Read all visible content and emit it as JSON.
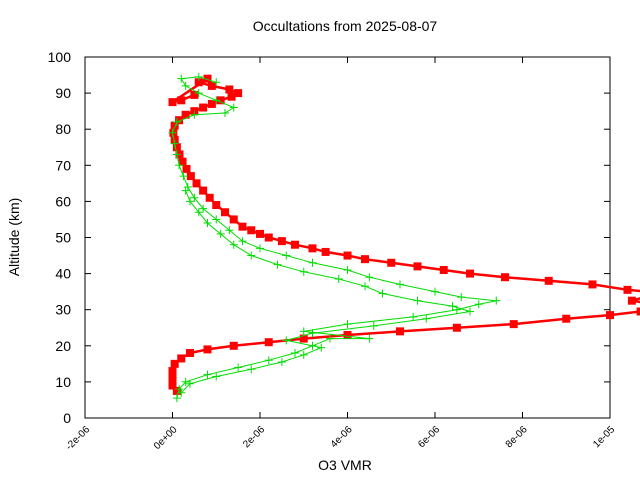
{
  "chart_data": {
    "type": "line",
    "title": "Occultations from 2025-08-07",
    "xlabel": "O3 VMR",
    "ylabel": "Altitude (km)",
    "xlim": [
      -2e-06,
      1e-05
    ],
    "ylim": [
      0,
      100
    ],
    "xticks": [
      {
        "value": -2e-06,
        "label": "-2e-06"
      },
      {
        "value": 0,
        "label": "0e+00"
      },
      {
        "value": 2e-06,
        "label": "2e-06"
      },
      {
        "value": 4e-06,
        "label": "4e-06"
      },
      {
        "value": 6e-06,
        "label": "6e-06"
      },
      {
        "value": 8e-06,
        "label": "8e-06"
      },
      {
        "value": 1e-05,
        "label": "1e-05"
      },
      {
        "value": 1.2e-05,
        "label": "1e-05"
      }
    ],
    "yticks": [
      0,
      10,
      20,
      30,
      40,
      50,
      60,
      70,
      80,
      90,
      100
    ],
    "series": [
      {
        "name": "red profile",
        "color": "#ff0000",
        "marker": "square",
        "points": [
          [
            1e-07,
            7.5
          ],
          [
            0.0,
            9
          ],
          [
            0.0,
            11
          ],
          [
            0.0,
            13
          ],
          [
            5e-08,
            15
          ],
          [
            2e-07,
            16.5
          ],
          [
            4e-07,
            18
          ],
          [
            8e-07,
            19
          ],
          [
            1.4e-06,
            20
          ],
          [
            2.2e-06,
            21
          ],
          [
            3e-06,
            22
          ],
          [
            4e-06,
            23
          ],
          [
            5.2e-06,
            24
          ],
          [
            6.5e-06,
            25
          ],
          [
            7.8e-06,
            26
          ],
          [
            9e-06,
            27.5
          ],
          [
            1e-05,
            28.5
          ],
          [
            1.07e-05,
            29.5
          ],
          [
            1.12e-05,
            30.5
          ],
          [
            1.1e-05,
            31.5
          ],
          [
            1.05e-05,
            32.5
          ],
          [
            1.08e-05,
            33.5
          ],
          [
            1.13e-05,
            34.5
          ],
          [
            1.04e-05,
            35.5
          ],
          [
            9.6e-06,
            37
          ],
          [
            8.6e-06,
            38
          ],
          [
            7.6e-06,
            39
          ],
          [
            6.8e-06,
            40
          ],
          [
            6.2e-06,
            41
          ],
          [
            5.6e-06,
            42
          ],
          [
            5e-06,
            43
          ],
          [
            4.4e-06,
            44
          ],
          [
            4e-06,
            45
          ],
          [
            3.5e-06,
            46
          ],
          [
            3.2e-06,
            47
          ],
          [
            2.8e-06,
            48
          ],
          [
            2.5e-06,
            49
          ],
          [
            2.2e-06,
            50
          ],
          [
            2e-06,
            51
          ],
          [
            1.8e-06,
            52
          ],
          [
            1.6e-06,
            53
          ],
          [
            1.4e-06,
            55
          ],
          [
            1.2e-06,
            57
          ],
          [
            1e-06,
            59
          ],
          [
            8.5e-07,
            61
          ],
          [
            7e-07,
            63
          ],
          [
            5.5e-07,
            65
          ],
          [
            4.2e-07,
            67
          ],
          [
            3.2e-07,
            69
          ],
          [
            2.3e-07,
            71
          ],
          [
            1.6e-07,
            73
          ],
          [
            1e-07,
            75
          ],
          [
            5e-08,
            77
          ],
          [
            2e-08,
            79
          ],
          [
            5e-08,
            81
          ],
          [
            1.5e-07,
            82.5
          ],
          [
            3e-07,
            84
          ],
          [
            5e-07,
            85
          ],
          [
            7e-07,
            86
          ],
          [
            9e-07,
            87
          ],
          [
            1.1e-06,
            88
          ],
          [
            1.35e-06,
            89
          ],
          [
            1.5e-06,
            90
          ],
          [
            1.3e-06,
            91
          ],
          [
            9e-07,
            92
          ],
          [
            6e-07,
            93
          ],
          [
            8e-07,
            94
          ],
          [
            0.0,
            87.5
          ],
          [
            2e-07,
            88
          ],
          [
            5e-07,
            89.5
          ]
        ]
      },
      {
        "name": "green profile",
        "color": "#00dd00",
        "marker": "plus",
        "points": [
          [
            1e-07,
            5.5
          ],
          [
            1.5e-07,
            8
          ],
          [
            3e-07,
            10
          ],
          [
            8e-07,
            12
          ],
          [
            1.5e-06,
            14
          ],
          [
            2.2e-06,
            16
          ],
          [
            2.8e-06,
            18
          ],
          [
            3.2e-06,
            20
          ],
          [
            3.6e-06,
            22
          ],
          [
            4.5e-06,
            22
          ],
          [
            3e-06,
            24
          ],
          [
            4e-06,
            26
          ],
          [
            5.5e-06,
            28
          ],
          [
            6.5e-06,
            30
          ],
          [
            7e-06,
            31.5
          ],
          [
            7.4e-06,
            32.5
          ],
          [
            6.6e-06,
            33.5
          ],
          [
            6e-06,
            35
          ],
          [
            5.2e-06,
            37
          ],
          [
            4.5e-06,
            39
          ],
          [
            4e-06,
            41
          ],
          [
            3.2e-06,
            43
          ],
          [
            2.6e-06,
            45
          ],
          [
            2e-06,
            47
          ],
          [
            1.6e-06,
            49
          ],
          [
            1.3e-06,
            52
          ],
          [
            1e-06,
            55
          ],
          [
            7e-07,
            58
          ],
          [
            5e-07,
            61
          ],
          [
            3.5e-07,
            64
          ],
          [
            2.5e-07,
            67
          ],
          [
            1.5e-07,
            70
          ],
          [
            1e-07,
            73
          ],
          [
            5e-08,
            76
          ],
          [
            0.0,
            79
          ],
          [
            1e-07,
            82
          ],
          [
            5e-07,
            84
          ],
          [
            1.2e-06,
            84.5
          ],
          [
            1.4e-06,
            86
          ],
          [
            1e-06,
            88
          ],
          [
            6e-07,
            90
          ],
          [
            3e-07,
            92
          ],
          [
            2e-07,
            94
          ],
          [
            6e-07,
            94.5
          ],
          [
            1e-06,
            93
          ]
        ]
      },
      {
        "name": "green profile 2",
        "color": "#00dd00",
        "marker": "plus",
        "points": [
          [
            2e-07,
            7
          ],
          [
            4e-07,
            9.5
          ],
          [
            1e-06,
            11.5
          ],
          [
            1.8e-06,
            13.5
          ],
          [
            2.5e-06,
            15.5
          ],
          [
            3e-06,
            17.5
          ],
          [
            3.4e-06,
            19.5
          ],
          [
            2.6e-06,
            21.5
          ],
          [
            3.2e-06,
            23.5
          ],
          [
            4.6e-06,
            25.5
          ],
          [
            5.8e-06,
            27.5
          ],
          [
            6.8e-06,
            29.5
          ],
          [
            6.4e-06,
            31
          ],
          [
            5.6e-06,
            32.5
          ],
          [
            4.8e-06,
            34.5
          ],
          [
            4.4e-06,
            36.5
          ],
          [
            3.8e-06,
            38.5
          ],
          [
            3e-06,
            40.5
          ],
          [
            2.4e-06,
            42.5
          ],
          [
            1.8e-06,
            45
          ],
          [
            1.4e-06,
            48
          ],
          [
            1.1e-06,
            51
          ],
          [
            8e-07,
            54
          ],
          [
            6e-07,
            57
          ],
          [
            4e-07,
            60
          ],
          [
            3e-07,
            63
          ]
        ]
      }
    ]
  }
}
